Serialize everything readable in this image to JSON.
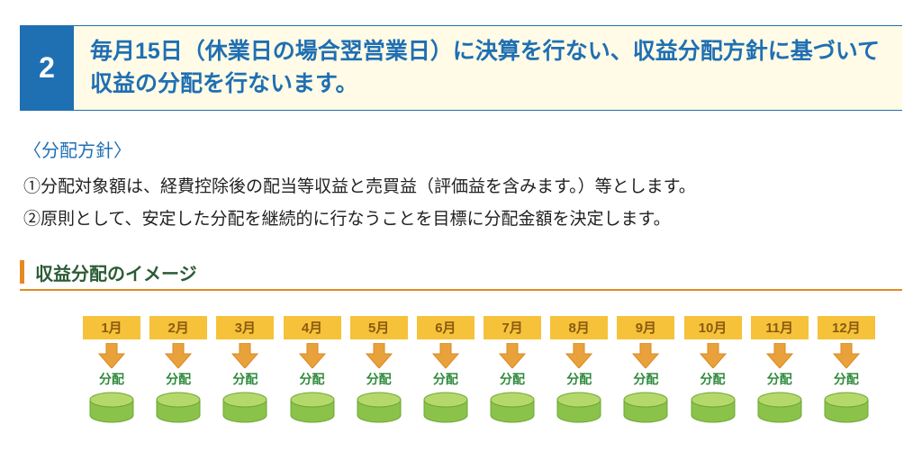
{
  "header": {
    "number": "2",
    "number_bg": "#1f6fb3",
    "number_color": "#ffffff",
    "title": "毎月15日（休業日の場合翌営業日）に決算を行ない、収益分配方針に基づいて収益の分配を行ないます。",
    "title_bg": "#fffbe6",
    "title_border": "#1f6fb3",
    "title_color": "#1f6fb3"
  },
  "policy": {
    "heading": "〈分配方針〉",
    "heading_color": "#1f6fb3",
    "line1": "①分配対象額は、経費控除後の配当等収益と売買益（評価益を含みます。）等とします。",
    "line2": "②原則として、安定した分配を継続的に行なうことを目標に分配金額を決定します。",
    "text_color": "#222222"
  },
  "section": {
    "title": "収益分配のイメージ",
    "accent_color": "#e38b1e",
    "underline_color": "#e38b1e",
    "title_color": "#2a5c34"
  },
  "timeline": {
    "months": [
      "1月",
      "2月",
      "3月",
      "4月",
      "5月",
      "6月",
      "7月",
      "8月",
      "9月",
      "10月",
      "11月",
      "12月"
    ],
    "dist_label": "分配",
    "month_bg": "#f6c23a",
    "month_text": "#8a5a10",
    "arrow_fill": "#e9a23b",
    "arrow_stroke": "#d9891f",
    "dist_color": "#2f8a3c",
    "cylinder_top": "#b4d96a",
    "cylinder_side": "#8bc24a",
    "cylinder_stroke": "#6fa738"
  }
}
